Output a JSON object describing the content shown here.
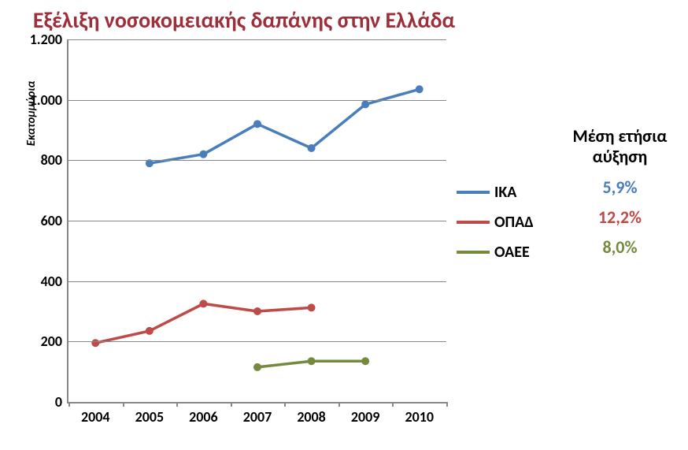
{
  "chart": {
    "type": "line",
    "title": "Εξέλιξη νοσοκομειακής δαπάνης στην Ελλάδα",
    "title_color": "#9e2e3a",
    "title_fontsize": 28,
    "yaxis_title": "Εκατομμύρια",
    "yaxis_title_fontsize": 15,
    "background_color": "#ffffff",
    "axis_color": "#888888",
    "grid_color": "#888888",
    "tick_font_color": "#000000",
    "tick_fontsize": 18,
    "x": {
      "categories": [
        "2004",
        "2005",
        "2006",
        "2007",
        "2008",
        "2009",
        "2010"
      ]
    },
    "y": {
      "min": 0,
      "max": 1200,
      "step": 200,
      "ticks": [
        "0",
        "200",
        "400",
        "600",
        "800",
        "1.000",
        "1.200"
      ],
      "thousands_sep": "."
    },
    "line_width": 3.5,
    "marker_size": 5,
    "series": [
      {
        "id": "ika",
        "name": "ΙΚΑ",
        "color": "#4a7ebb",
        "x_indices": [
          1,
          2,
          3,
          4,
          5,
          6
        ],
        "values": [
          790,
          820,
          920,
          840,
          985,
          1035
        ]
      },
      {
        "id": "opad",
        "name": "ΟΠΑΔ",
        "color": "#be4b48",
        "x_indices": [
          0,
          1,
          2,
          3,
          4
        ],
        "values": [
          195,
          235,
          325,
          300,
          312
        ]
      },
      {
        "id": "oaee",
        "name": "ΟΑΕΕ",
        "color": "#768a3d",
        "x_indices": [
          3,
          4,
          5
        ],
        "values": [
          115,
          135,
          135
        ]
      }
    ]
  },
  "legend": {
    "fontsize": 20,
    "items": [
      {
        "label": "ΙΚΑ",
        "color": "#4a7ebb"
      },
      {
        "label": "ΟΠΑΔ",
        "color": "#be4b48"
      },
      {
        "label": "ΟΑΕΕ",
        "color": "#768a3d"
      }
    ]
  },
  "growth": {
    "heading_line1": "Μέση ετήσια",
    "heading_line2": "αύξηση",
    "heading_fontsize": 22,
    "value_fontsize": 22,
    "values": [
      {
        "label_for": "ΙΚΑ",
        "text": "5,9%",
        "color": "#4a7ebb"
      },
      {
        "label_for": "ΟΠΑΔ",
        "text": "12,2%",
        "color": "#be4b48"
      },
      {
        "label_for": "ΟΑΕΕ",
        "text": "8,0%",
        "color": "#768a3d"
      }
    ]
  }
}
